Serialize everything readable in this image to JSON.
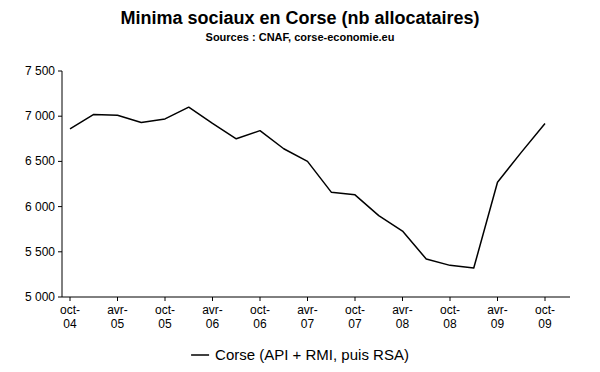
{
  "chart_data": {
    "type": "line",
    "title": "Minima sociaux en Corse (nb allocataires)",
    "subtitle": "Sources : CNAF, corse-economie.eu",
    "categories": [
      "oct-04",
      null,
      "avr-05",
      null,
      "oct-05",
      null,
      "avr-06",
      null,
      "oct-06",
      null,
      "avr-07",
      null,
      "oct-07",
      null,
      "avr-08",
      null,
      "oct-08",
      null,
      "avr-09",
      null,
      "oct-09"
    ],
    "series": [
      {
        "name": "Corse (API + RMI, puis RSA)",
        "color": "#000000",
        "values": [
          6860,
          7020,
          7010,
          6930,
          6970,
          7100,
          6920,
          6750,
          6840,
          6640,
          6500,
          6160,
          6130,
          5900,
          5730,
          5420,
          5350,
          5320,
          6270,
          6600,
          6920
        ]
      }
    ],
    "ylim": [
      5000,
      7500
    ],
    "yticks": [
      {
        "value": 5000,
        "label": "5 000"
      },
      {
        "value": 5500,
        "label": "5 500"
      },
      {
        "value": 6000,
        "label": "6 000"
      },
      {
        "value": 6500,
        "label": "6 500"
      },
      {
        "value": 7000,
        "label": "7 000"
      },
      {
        "value": 7500,
        "label": "7 500"
      }
    ],
    "grid": false,
    "legend": "bottom"
  }
}
